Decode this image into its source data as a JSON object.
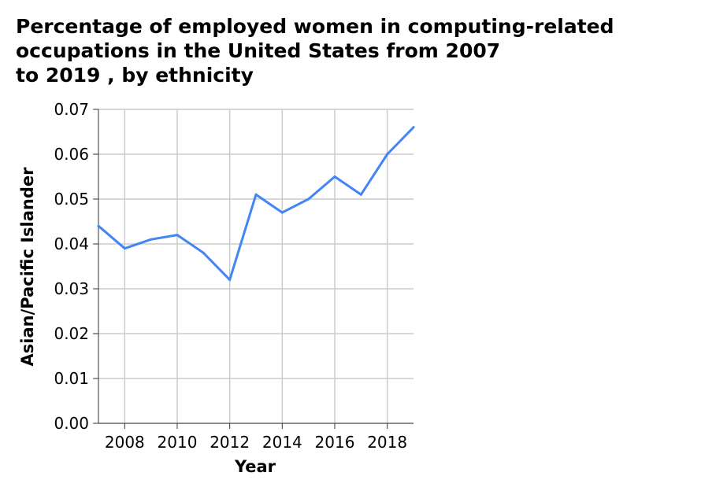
{
  "chart_data": {
    "type": "line",
    "title": "Percentage of employed women in computing-related\noccupations in the United States from 2007\nto 2019 , by ethnicity",
    "xlabel": "Year",
    "ylabel": "Asian/Pacific Islander",
    "x": [
      2007,
      2008,
      2009,
      2010,
      2011,
      2012,
      2013,
      2014,
      2015,
      2016,
      2017,
      2018,
      2019
    ],
    "series": [
      {
        "values": [
          0.044,
          0.039,
          0.041,
          0.042,
          0.038,
          0.032,
          0.051,
          0.047,
          0.05,
          0.055,
          0.051,
          0.06,
          0.066
        ]
      }
    ],
    "xlim": [
      2007,
      2019
    ],
    "ylim": [
      0.0,
      0.07
    ],
    "xticks": [
      2008,
      2010,
      2012,
      2014,
      2016,
      2018
    ],
    "xtick_labels": [
      "2008",
      "2010",
      "2012",
      "2014",
      "2016",
      "2018"
    ],
    "yticks": [
      0.0,
      0.01,
      0.02,
      0.03,
      0.04,
      0.05,
      0.06,
      0.07
    ],
    "ytick_labels": [
      "0.00",
      "0.01",
      "0.02",
      "0.03",
      "0.04",
      "0.05",
      "0.06",
      "0.07"
    ],
    "grid": true,
    "line_color": "#4285f4"
  }
}
